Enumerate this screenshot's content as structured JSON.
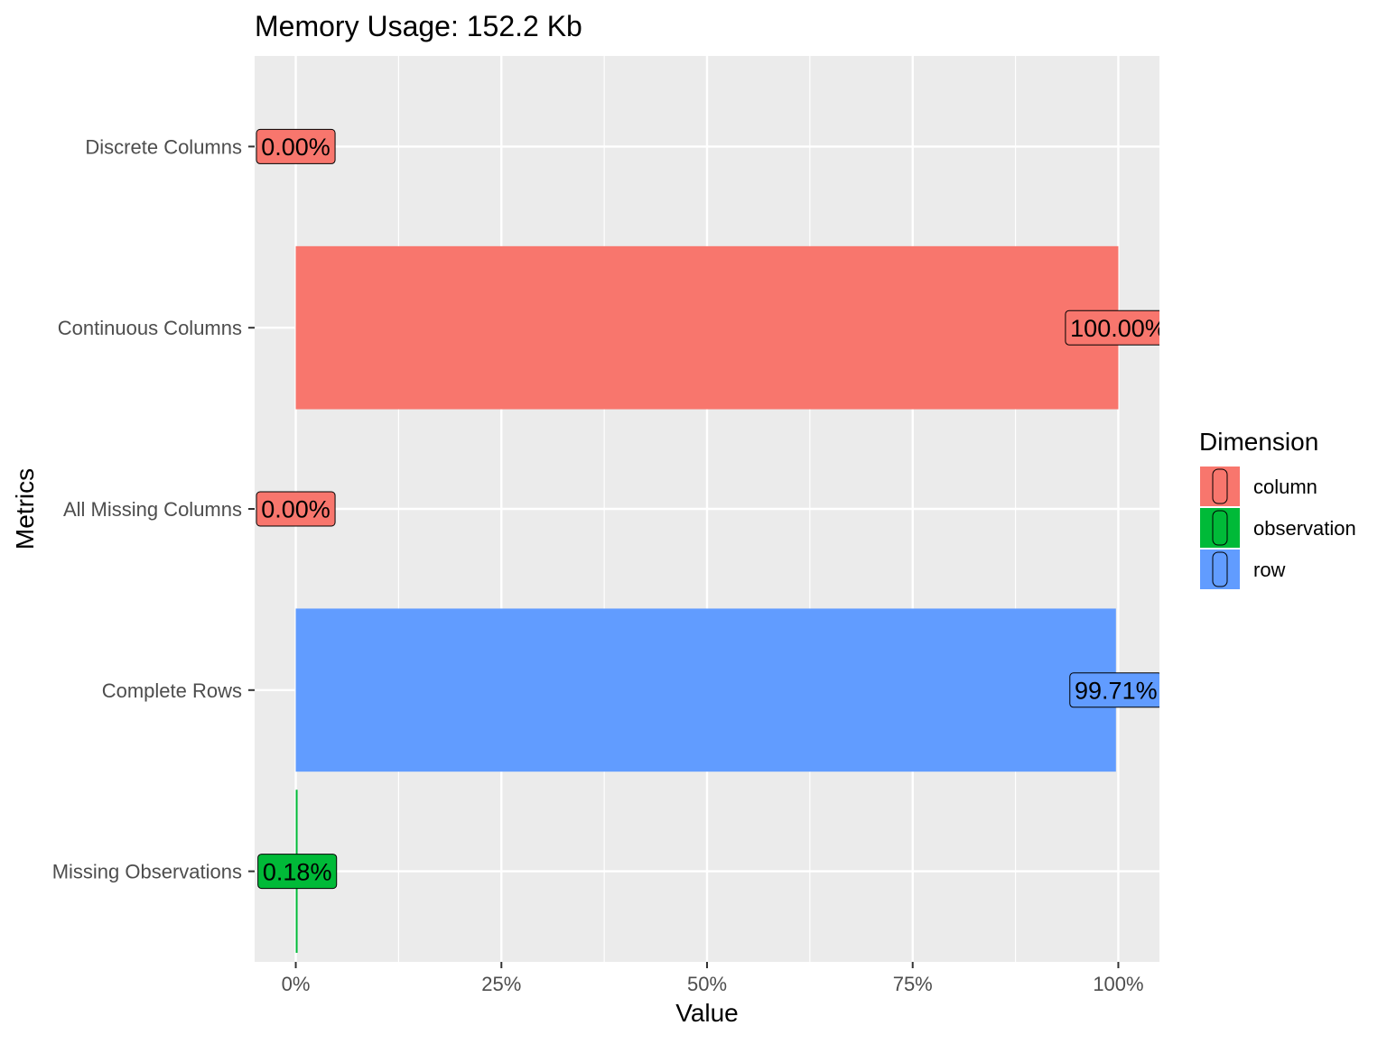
{
  "chart_data": {
    "type": "bar",
    "orientation": "horizontal",
    "title": "Memory Usage: 152.2 Kb",
    "xlabel": "Value",
    "ylabel": "Metrics",
    "xlim": [
      -0.05,
      1.05
    ],
    "x_ticks": [
      {
        "value": 0,
        "label": "0%"
      },
      {
        "value": 0.25,
        "label": "25%"
      },
      {
        "value": 0.5,
        "label": "50%"
      },
      {
        "value": 0.75,
        "label": "75%"
      },
      {
        "value": 1.0,
        "label": "100%"
      }
    ],
    "categories": [
      "Discrete Columns",
      "Continuous Columns",
      "All Missing Columns",
      "Complete Rows",
      "Missing Observations"
    ],
    "bars": [
      {
        "category": "Discrete Columns",
        "value": 0.0,
        "dimension": "column",
        "label": "0.00%"
      },
      {
        "category": "Continuous Columns",
        "value": 1.0,
        "dimension": "column",
        "label": "100.00%"
      },
      {
        "category": "All Missing Columns",
        "value": 0.0,
        "dimension": "column",
        "label": "0.00%"
      },
      {
        "category": "Complete Rows",
        "value": 0.9971,
        "dimension": "row",
        "label": "99.71%"
      },
      {
        "category": "Missing Observations",
        "value": 0.0018,
        "dimension": "observation",
        "label": "0.18%"
      }
    ],
    "legend": {
      "title": "Dimension",
      "position": "right",
      "items": [
        {
          "name": "column",
          "color": "#F8766D"
        },
        {
          "name": "observation",
          "color": "#00BA38"
        },
        {
          "name": "row",
          "color": "#619CFF"
        }
      ]
    },
    "grid": true,
    "panel_background": "#EBEBEB"
  }
}
